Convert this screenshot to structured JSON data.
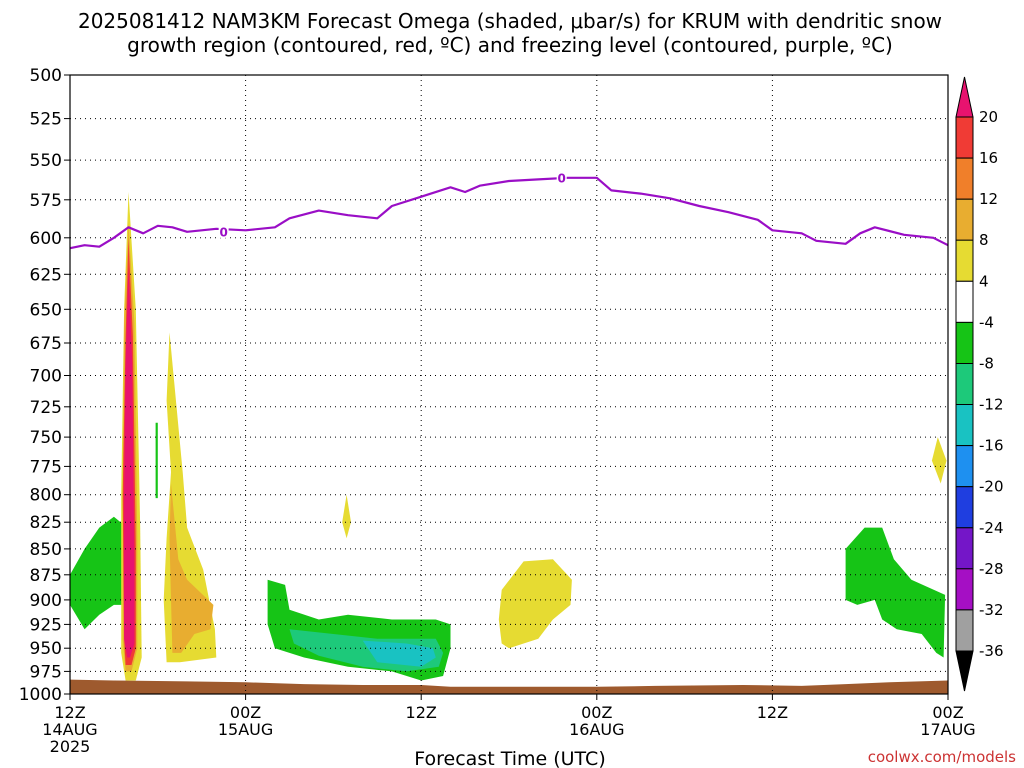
{
  "title": {
    "line1": "2025081412 NAM3KM Forecast Omega (shaded, μbar/s) for KRUM with dendritic snow",
    "line2": "growth region (contoured, red, ºC) and freezing level (contoured, purple, ºC)"
  },
  "credit": {
    "text": "coolwx.com/models",
    "color": "#cc3333"
  },
  "chart_data": {
    "type": "heatmap",
    "title": "2025081412 NAM3KM Forecast Omega (shaded, μbar/s) for KRUM with dendritic snow growth region (contoured, red, ºC) and freezing level (contoured, purple, ºC)",
    "xlabel": "Forecast Time (UTC)",
    "ylabel": "",
    "x_range_hours": [
      0,
      60
    ],
    "y_range_hpa": [
      500,
      1000
    ],
    "y_scale": "log-pressure",
    "y_inverted": true,
    "grid": true,
    "y_ticks": [
      500,
      525,
      550,
      575,
      600,
      625,
      650,
      675,
      700,
      725,
      750,
      775,
      800,
      825,
      850,
      875,
      900,
      925,
      950,
      975,
      1000
    ],
    "x_ticks": [
      {
        "hour": 0,
        "lines": [
          "12Z",
          "14AUG",
          "2025"
        ]
      },
      {
        "hour": 12,
        "lines": [
          "00Z",
          "15AUG"
        ]
      },
      {
        "hour": 24,
        "lines": [
          "12Z"
        ]
      },
      {
        "hour": 36,
        "lines": [
          "00Z",
          "16AUG"
        ]
      },
      {
        "hour": 48,
        "lines": [
          "12Z"
        ]
      },
      {
        "hour": 60,
        "lines": [
          "00Z",
          "17AUG"
        ]
      }
    ],
    "colorbar": {
      "labels": [
        "20",
        "16",
        "12",
        "8",
        "4",
        "-4",
        "-8",
        "-12",
        "-16",
        "-20",
        "-24",
        "-28",
        "-32",
        "-36"
      ],
      "segments": [
        {
          "color": "#e8136f",
          "range": "> 20"
        },
        {
          "color": "#f03b35",
          "range": "16 to 20"
        },
        {
          "color": "#f07f2a",
          "range": "12 to 16"
        },
        {
          "color": "#e8ad30",
          "range": "8 to 12"
        },
        {
          "color": "#e6db32",
          "range": "4 to 8"
        },
        {
          "color": "#ffffff",
          "range": "-4 to 4"
        },
        {
          "color": "#16c416",
          "range": "-8 to -4"
        },
        {
          "color": "#1dc97a",
          "range": "-12 to -8"
        },
        {
          "color": "#19c2c2",
          "range": "-16 to -12"
        },
        {
          "color": "#1e90f0",
          "range": "-20 to -16"
        },
        {
          "color": "#1f3ee0",
          "range": "-24 to -20"
        },
        {
          "color": "#7416c8",
          "range": "-28 to -24"
        },
        {
          "color": "#a50fc4",
          "range": "-32 to -28"
        },
        {
          "color": "#a0a0a0",
          "range": "-36 to -32"
        },
        {
          "color": "#000000",
          "range": "< -36"
        }
      ]
    },
    "freezing_level": {
      "color": "#9a0ec6",
      "contour_label": "0",
      "points": [
        [
          0,
          607
        ],
        [
          1,
          605
        ],
        [
          2,
          606
        ],
        [
          3,
          600
        ],
        [
          4,
          593
        ],
        [
          5,
          597
        ],
        [
          6,
          592
        ],
        [
          7,
          593
        ],
        [
          8,
          596
        ],
        [
          10,
          594
        ],
        [
          12,
          595
        ],
        [
          14,
          593
        ],
        [
          15,
          587
        ],
        [
          17,
          582
        ],
        [
          19,
          585
        ],
        [
          21,
          587
        ],
        [
          22,
          579
        ],
        [
          24,
          573
        ],
        [
          26,
          567
        ],
        [
          27,
          570
        ],
        [
          28,
          566
        ],
        [
          30,
          563
        ],
        [
          32,
          562
        ],
        [
          34,
          561
        ],
        [
          36,
          561
        ],
        [
          37,
          569
        ],
        [
          39,
          571
        ],
        [
          41,
          574
        ],
        [
          43,
          579
        ],
        [
          45,
          583
        ],
        [
          47,
          588
        ],
        [
          48,
          595
        ],
        [
          50,
          597
        ],
        [
          51,
          602
        ],
        [
          53,
          604
        ],
        [
          54,
          597
        ],
        [
          55,
          593
        ],
        [
          57,
          598
        ],
        [
          59,
          600
        ],
        [
          60,
          605
        ]
      ]
    },
    "shaded_regions": [
      {
        "label": "green",
        "color": "#16c416",
        "points": [
          [
            0,
            875
          ],
          [
            1,
            850
          ],
          [
            2,
            830
          ],
          [
            3,
            820
          ],
          [
            3.9,
            830
          ],
          [
            3.8,
            905
          ],
          [
            3,
            905
          ],
          [
            2,
            915
          ],
          [
            1,
            930
          ],
          [
            0,
            905
          ]
        ]
      },
      {
        "label": "yellow",
        "color": "#e6db32",
        "points": [
          [
            4.0,
            570
          ],
          [
            4.5,
            650
          ],
          [
            4.8,
            830
          ],
          [
            4.9,
            960
          ],
          [
            4.5,
            985
          ],
          [
            3.8,
            985
          ],
          [
            3.5,
            955
          ],
          [
            3.5,
            800
          ],
          [
            3.7,
            650
          ]
        ]
      },
      {
        "label": "orange",
        "color": "#e8ad30",
        "points": [
          [
            4.0,
            590
          ],
          [
            4.4,
            660
          ],
          [
            4.6,
            840
          ],
          [
            4.6,
            950
          ],
          [
            4.2,
            975
          ],
          [
            3.8,
            975
          ],
          [
            3.6,
            940
          ],
          [
            3.6,
            800
          ],
          [
            3.7,
            660
          ]
        ]
      },
      {
        "label": "red",
        "color": "#f03b35",
        "points": [
          [
            4.0,
            600
          ],
          [
            4.3,
            670
          ],
          [
            4.5,
            850
          ],
          [
            4.5,
            950
          ],
          [
            4.2,
            968
          ],
          [
            3.8,
            968
          ],
          [
            3.7,
            940
          ],
          [
            3.6,
            800
          ],
          [
            3.8,
            670
          ]
        ]
      },
      {
        "label": "magenta",
        "color": "#e8136f",
        "points": [
          [
            4.0,
            620
          ],
          [
            4.25,
            690
          ],
          [
            4.4,
            860
          ],
          [
            4.4,
            945
          ],
          [
            4.1,
            960
          ],
          [
            3.9,
            960
          ],
          [
            3.7,
            940
          ],
          [
            3.7,
            800
          ],
          [
            3.8,
            690
          ]
        ]
      },
      {
        "label": "yellow",
        "color": "#e6db32",
        "points": [
          [
            6.8,
            667
          ],
          [
            7.7,
            780
          ],
          [
            8.0,
            830
          ],
          [
            9.1,
            870
          ],
          [
            9.9,
            930
          ],
          [
            10.0,
            960
          ],
          [
            7.5,
            965
          ],
          [
            6.6,
            965
          ],
          [
            6.4,
            900
          ],
          [
            6.6,
            840
          ],
          [
            6.9,
            780
          ],
          [
            6.6,
            720
          ]
        ]
      },
      {
        "label": "orange",
        "color": "#e8ad30",
        "points": [
          [
            6.9,
            790
          ],
          [
            7.4,
            860
          ],
          [
            8.0,
            880
          ],
          [
            9.8,
            905
          ],
          [
            9.6,
            930
          ],
          [
            8.5,
            935
          ],
          [
            7.6,
            955
          ],
          [
            7.0,
            955
          ],
          [
            6.9,
            900
          ],
          [
            6.8,
            840
          ]
        ]
      },
      {
        "label": "green",
        "color": "#16c416",
        "points": [
          [
            5.85,
            738
          ],
          [
            6.0,
            738
          ],
          [
            6.0,
            803
          ],
          [
            5.85,
            803
          ]
        ]
      },
      {
        "label": "yellow",
        "color": "#e6db32",
        "points": [
          [
            18.9,
            800
          ],
          [
            19.2,
            825
          ],
          [
            18.9,
            840
          ],
          [
            18.6,
            825
          ]
        ]
      },
      {
        "label": "green",
        "color": "#16c416",
        "points": [
          [
            13.5,
            880
          ],
          [
            14.7,
            885
          ],
          [
            15,
            910
          ],
          [
            17,
            920
          ],
          [
            19,
            915
          ],
          [
            22,
            920
          ],
          [
            25,
            920
          ],
          [
            26,
            925
          ],
          [
            26,
            950
          ],
          [
            25.5,
            980
          ],
          [
            24,
            985
          ],
          [
            22,
            975
          ],
          [
            19,
            970
          ],
          [
            16,
            960
          ],
          [
            14,
            950
          ],
          [
            13.5,
            925
          ]
        ]
      },
      {
        "label": "sea-green",
        "color": "#1dc97a",
        "points": [
          [
            15,
            930
          ],
          [
            18,
            935
          ],
          [
            21,
            940
          ],
          [
            25,
            940
          ],
          [
            25.5,
            955
          ],
          [
            25.2,
            970
          ],
          [
            23,
            975
          ],
          [
            20,
            970
          ],
          [
            17,
            958
          ],
          [
            15.3,
            945
          ]
        ]
      },
      {
        "label": "cyan",
        "color": "#19c2c2",
        "points": [
          [
            20,
            942
          ],
          [
            23,
            945
          ],
          [
            24.8,
            950
          ],
          [
            25,
            960
          ],
          [
            24,
            970
          ],
          [
            21,
            965
          ]
        ]
      },
      {
        "label": "yellow",
        "color": "#e6db32",
        "points": [
          [
            29.5,
            890
          ],
          [
            31,
            862
          ],
          [
            33,
            860
          ],
          [
            34.3,
            880
          ],
          [
            34.2,
            905
          ],
          [
            33,
            920
          ],
          [
            32,
            940
          ],
          [
            30,
            950
          ],
          [
            29.5,
            945
          ],
          [
            29.3,
            920
          ]
        ]
      },
      {
        "label": "green",
        "color": "#16c416",
        "points": [
          [
            53,
            850
          ],
          [
            54.3,
            830
          ],
          [
            55.5,
            830
          ],
          [
            56.3,
            860
          ],
          [
            57.5,
            880
          ],
          [
            59.8,
            895
          ],
          [
            59.7,
            960
          ],
          [
            59.2,
            955
          ],
          [
            58.2,
            935
          ],
          [
            56.5,
            930
          ],
          [
            55.5,
            920
          ],
          [
            55,
            900
          ],
          [
            53.8,
            905
          ],
          [
            53,
            900
          ]
        ]
      },
      {
        "label": "yellow",
        "color": "#e6db32",
        "points": [
          [
            59.3,
            750
          ],
          [
            59.9,
            770
          ],
          [
            59.5,
            790
          ],
          [
            58.9,
            770
          ]
        ]
      }
    ],
    "terrain": {
      "color": "#9e5a2e",
      "top_points": [
        [
          0,
          984
        ],
        [
          3,
          985
        ],
        [
          8,
          986
        ],
        [
          12,
          987
        ],
        [
          16,
          989
        ],
        [
          20,
          990
        ],
        [
          24,
          990
        ],
        [
          26,
          992
        ],
        [
          30,
          992
        ],
        [
          36,
          992
        ],
        [
          40,
          991
        ],
        [
          46,
          990
        ],
        [
          50,
          991
        ],
        [
          53,
          989
        ],
        [
          56,
          987
        ],
        [
          60,
          985
        ]
      ]
    }
  }
}
